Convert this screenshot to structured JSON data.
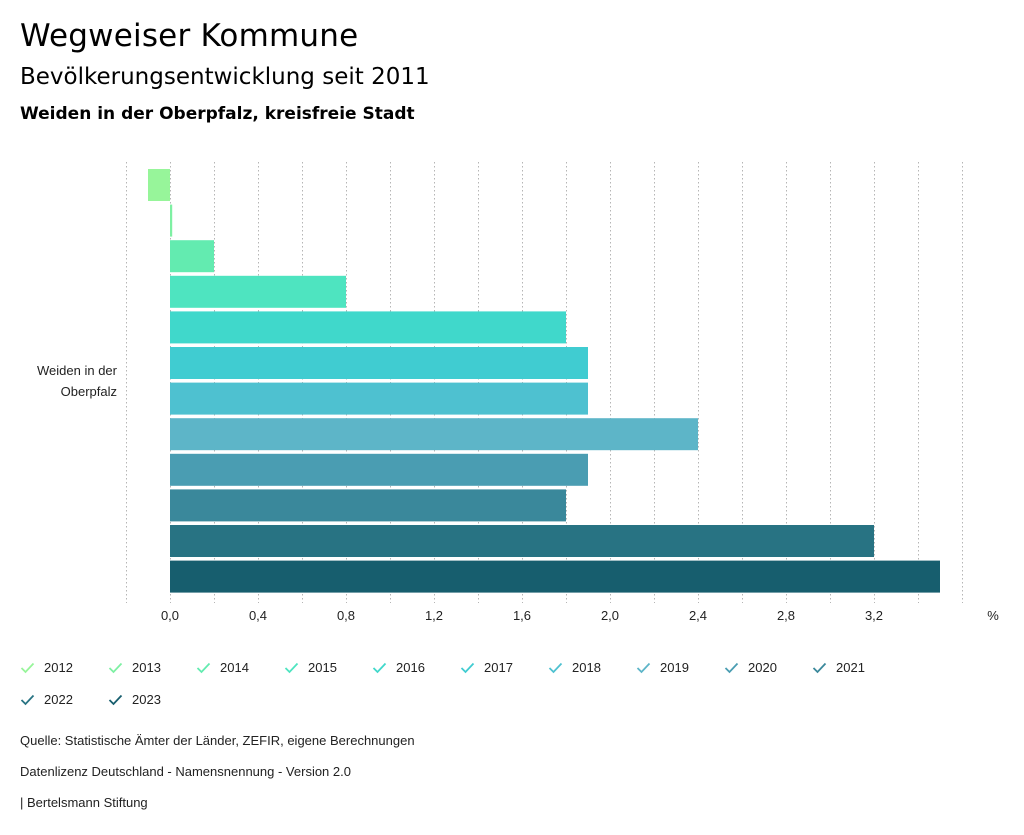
{
  "header": {
    "title": "Wegweiser Kommune",
    "subtitle": "Bevölkerungsentwicklung seit 2011",
    "region": "Weiden in der Oberpfalz, kreisfreie Stadt"
  },
  "chart_data": {
    "type": "bar",
    "orientation": "horizontal",
    "categories": [
      "Weiden in der Oberpfalz"
    ],
    "category_label_lines": [
      "Weiden in der",
      "Oberpfalz"
    ],
    "unit": "%",
    "xlim": [
      -0.2,
      3.6
    ],
    "ticks": [
      0.0,
      0.4,
      0.8,
      1.2,
      1.6,
      2.0,
      2.4,
      2.8,
      3.2
    ],
    "tick_labels": [
      "0,0",
      "0,4",
      "0,8",
      "1,2",
      "1,6",
      "2,0",
      "2,4",
      "2,8",
      "3,2"
    ],
    "grid": true,
    "series": [
      {
        "name": "2012",
        "values": [
          -0.1
        ],
        "color": "#97f59a"
      },
      {
        "name": "2013",
        "values": [
          0.01
        ],
        "color": "#7ef0a3"
      },
      {
        "name": "2014",
        "values": [
          0.2
        ],
        "color": "#63ebb0"
      },
      {
        "name": "2015",
        "values": [
          0.8
        ],
        "color": "#4ee4c0"
      },
      {
        "name": "2016",
        "values": [
          1.8
        ],
        "color": "#40d8cb"
      },
      {
        "name": "2017",
        "values": [
          1.9
        ],
        "color": "#40ccd1"
      },
      {
        "name": "2018",
        "values": [
          1.9
        ],
        "color": "#4ec1d0"
      },
      {
        "name": "2019",
        "values": [
          2.4
        ],
        "color": "#5db5c8"
      },
      {
        "name": "2020",
        "values": [
          1.9
        ],
        "color": "#4a9db2"
      },
      {
        "name": "2021",
        "values": [
          1.8
        ],
        "color": "#3a889b"
      },
      {
        "name": "2022",
        "values": [
          3.2
        ],
        "color": "#287383"
      },
      {
        "name": "2023",
        "values": [
          3.5
        ],
        "color": "#175e6e"
      }
    ]
  },
  "footer": {
    "source": "Quelle: Statistische Ämter der Länder, ZEFIR, eigene Berechnungen",
    "license": "Datenlizenz Deutschland - Namensnennung - Version 2.0",
    "credit": "| Bertelsmann Stiftung"
  }
}
